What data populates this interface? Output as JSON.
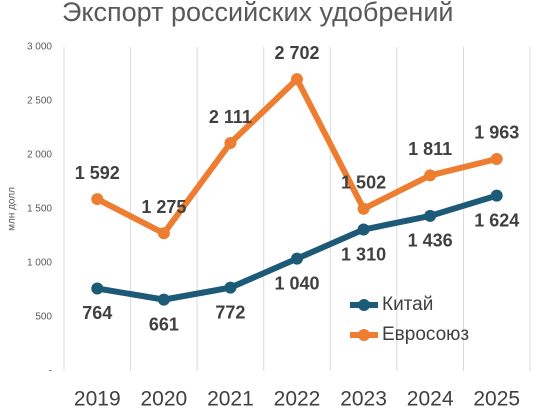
{
  "chart_data": {
    "type": "line",
    "title": "Экспорт российских удобрений",
    "y_label": "млн долл",
    "categories": [
      "2019",
      "2020",
      "2021",
      "2022",
      "2023",
      "2024",
      "2025"
    ],
    "series": [
      {
        "name": "Китай",
        "color": "#1d5a78",
        "values": [
          764,
          661,
          772,
          1040,
          1310,
          1436,
          1624
        ],
        "value_labels": [
          "764",
          "661",
          "772",
          "1 040",
          "1 310",
          "1 436",
          "1 624"
        ]
      },
      {
        "name": "Евросоюз",
        "color": "#ed7d31",
        "values": [
          1592,
          1275,
          2111,
          2702,
          1502,
          1811,
          1963
        ],
        "value_labels": [
          "1 592",
          "1 275",
          "2 111",
          "2 702",
          "1 502",
          "1 811",
          "1 963"
        ]
      }
    ],
    "ylim": [
      0,
      3000
    ],
    "yticks": [
      {
        "value": 0,
        "label": "-"
      },
      500,
      {
        "value": 1000,
        "label": "1 000"
      },
      {
        "value": 1500,
        "label": "1 500"
      },
      {
        "value": 2000,
        "label": "2 000"
      },
      {
        "value": 2500,
        "label": "2 500"
      },
      {
        "value": 3000,
        "label": "3 000"
      }
    ],
    "legend": "right",
    "grid": "x"
  }
}
